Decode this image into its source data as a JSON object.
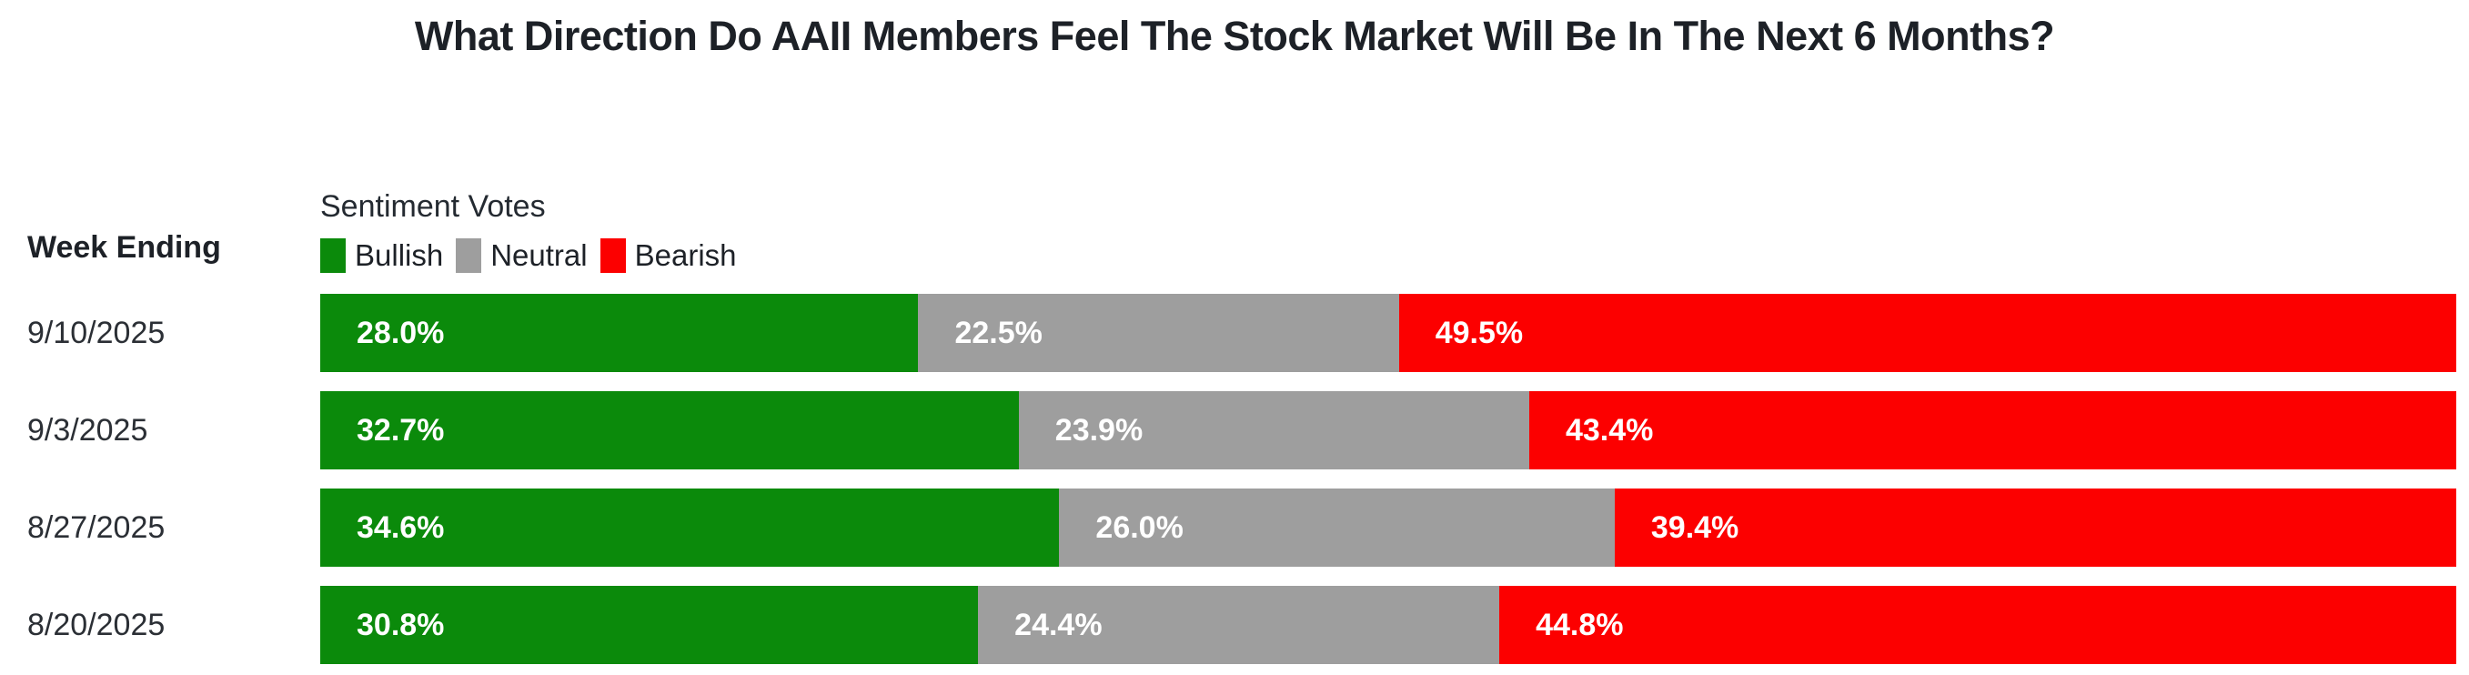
{
  "title": "What Direction Do AAII Members Feel The Stock Market Will Be In The Next 6 Months?",
  "row_axis_header": "Week Ending",
  "legend": {
    "heading": "Sentiment Votes",
    "items": [
      {
        "label": "Bullish",
        "color": "#0b8a0b"
      },
      {
        "label": "Neutral",
        "color": "#9e9e9e"
      },
      {
        "label": "Bearish",
        "color": "#fc0000"
      }
    ]
  },
  "colors": {
    "bullish": "#0b8a0b",
    "neutral": "#9e9e9e",
    "bearish": "#fc0000",
    "value_text": "#ffffff",
    "title_text": "#1d2127"
  },
  "chart_data": {
    "type": "bar",
    "orientation": "horizontal-stacked",
    "title": "What Direction Do AAII Members Feel The Stock Market Will Be In The Next 6 Months?",
    "categories": [
      "9/10/2025",
      "9/3/2025",
      "8/27/2025",
      "8/20/2025"
    ],
    "series": [
      {
        "name": "Bullish",
        "color": "#0b8a0b",
        "values": [
          28.0,
          32.7,
          34.6,
          30.8
        ]
      },
      {
        "name": "Neutral",
        "color": "#9e9e9e",
        "values": [
          22.5,
          23.9,
          26.0,
          24.4
        ]
      },
      {
        "name": "Bearish",
        "color": "#fc0000",
        "values": [
          49.5,
          43.4,
          39.4,
          44.8
        ]
      }
    ],
    "value_suffix": "%",
    "value_decimals": 1,
    "xlim": [
      0,
      100
    ],
    "grid": false,
    "legend_position": "top-left-above-bars",
    "data_labels": "inside-left"
  }
}
